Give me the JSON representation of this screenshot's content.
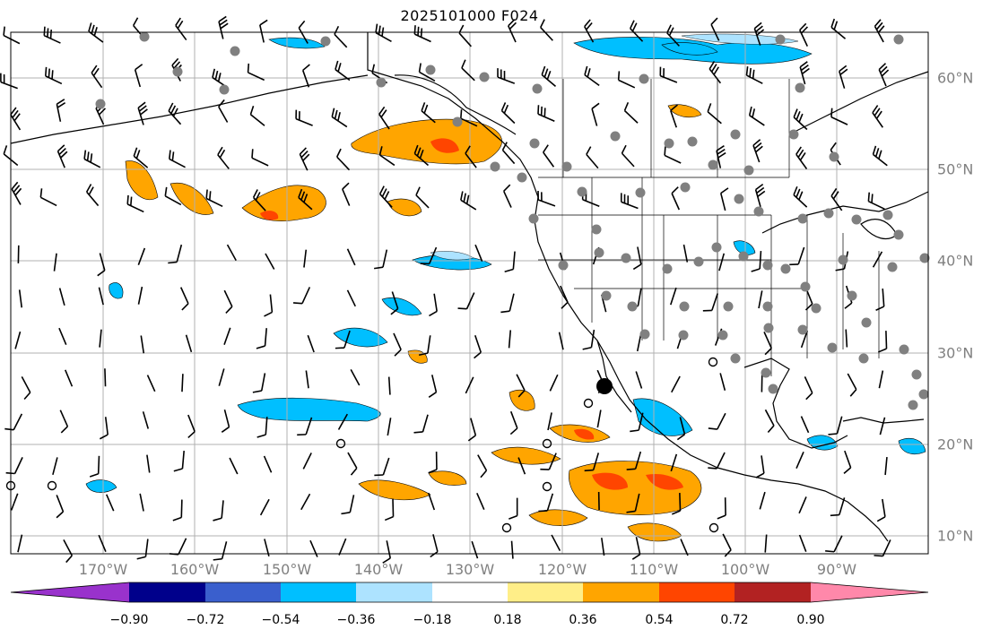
{
  "title": "2025101000 F024",
  "map": {
    "lon_ticks": [
      "170°W",
      "160°W",
      "150°W",
      "140°W",
      "130°W",
      "120°W",
      "110°W",
      "100°W",
      "90°W"
    ],
    "lat_ticks": [
      "60°N",
      "50°N",
      "40°N",
      "30°N",
      "20°N",
      "10°N"
    ],
    "gridlines": true,
    "content": [
      "shaded-anomaly-field",
      "wind-barbs",
      "station-dots",
      "coastlines",
      "state-borders"
    ]
  },
  "colorbar": {
    "tick_labels": [
      "−0.90",
      "−0.72",
      "−0.54",
      "−0.36",
      "−0.18",
      "0.18",
      "0.36",
      "0.54",
      "0.72",
      "0.90"
    ],
    "colors": [
      "#9932cc",
      "#00008b",
      "#3a5fcd",
      "#00bfff",
      "#ade3ff",
      "#ffffff",
      "#ffee88",
      "#ffa500",
      "#ff4500",
      "#b22222",
      "#ff88aa"
    ],
    "extend": "both"
  },
  "colors": {
    "grid": "#b0b0b0",
    "axis_text": "#808080",
    "station": "#808080",
    "warm": "#ffa500",
    "cool": "#00bfff"
  }
}
